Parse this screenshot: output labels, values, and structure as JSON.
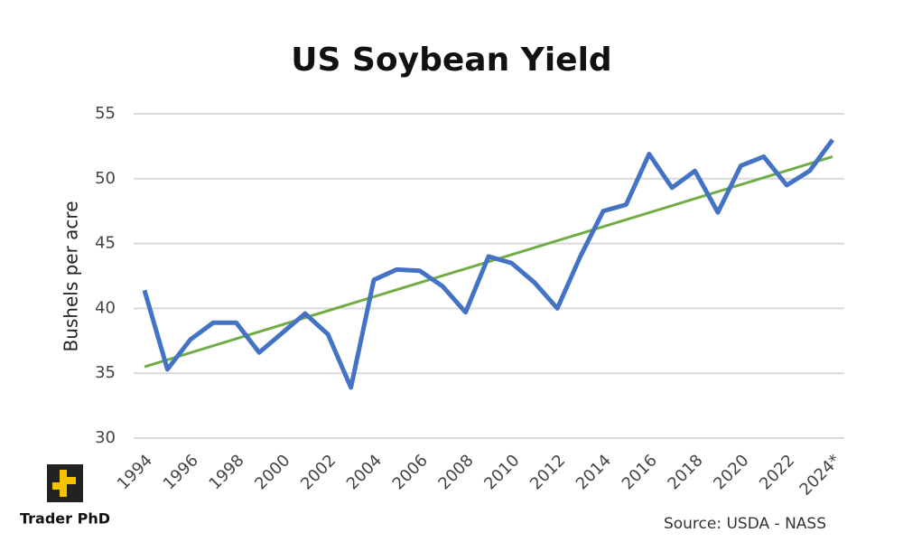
{
  "chart_data": {
    "type": "line",
    "title": "US Soybean Yield",
    "y_label": "Bushels per acre",
    "source": "Source: USDA - NASS",
    "logo": "Trader PhD",
    "categories": [
      "1994",
      null,
      "1996",
      null,
      "1998",
      null,
      "2000",
      null,
      "2002",
      null,
      "2004",
      null,
      "2006",
      null,
      "2008",
      null,
      "2010",
      null,
      "2012",
      null,
      "2014",
      null,
      "2016",
      null,
      "2018",
      null,
      "2020",
      null,
      "2022",
      null,
      "2024*"
    ],
    "series": [
      {
        "color": "#4472c4",
        "values": [
          41.4,
          35.3,
          37.6,
          38.9,
          38.9,
          36.6,
          38.1,
          39.6,
          38.0,
          33.9,
          42.2,
          43.0,
          42.9,
          41.7,
          39.7,
          44.0,
          43.5,
          42.0,
          40.0,
          44.0,
          47.5,
          48.0,
          51.9,
          49.3,
          50.6,
          47.4,
          51.0,
          51.7,
          49.5,
          50.6,
          53.0
        ]
      }
    ],
    "trend": {
      "color": "#70ad47",
      "start": 35.5,
      "end": 51.7
    },
    "ylim": [
      30,
      55
    ],
    "yticks": [
      30,
      35,
      40,
      45,
      50,
      55
    ],
    "grid": true
  }
}
